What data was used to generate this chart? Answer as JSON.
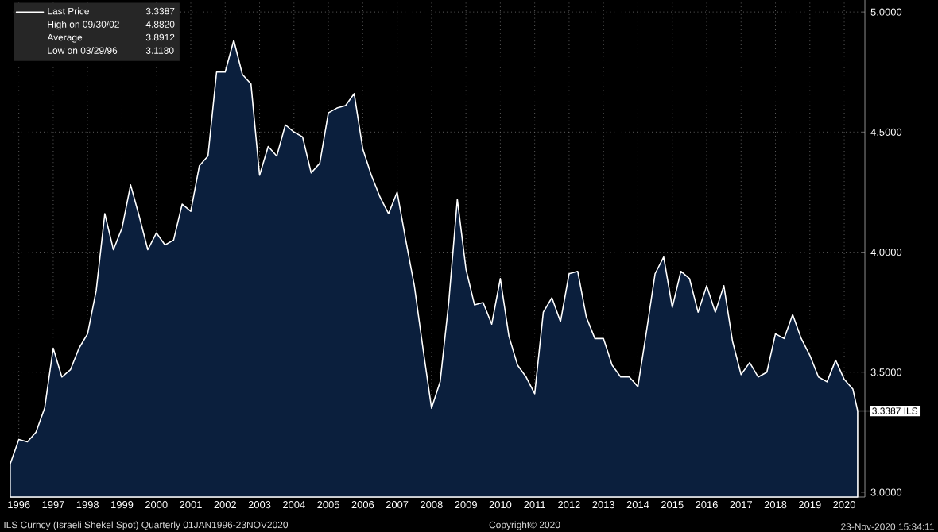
{
  "chart_data": {
    "type": "area",
    "x": [
      1996.25,
      1996.5,
      1996.75,
      1997.0,
      1997.25,
      1997.5,
      1997.75,
      1998.0,
      1998.25,
      1998.5,
      1998.75,
      1999.0,
      1999.25,
      1999.5,
      1999.75,
      2000.0,
      2000.25,
      2000.5,
      2000.75,
      2001.0,
      2001.25,
      2001.5,
      2001.75,
      2002.0,
      2002.25,
      2002.5,
      2002.75,
      2003.0,
      2003.25,
      2003.5,
      2003.75,
      2004.0,
      2004.25,
      2004.5,
      2004.75,
      2005.0,
      2005.25,
      2005.5,
      2005.75,
      2006.0,
      2006.25,
      2006.5,
      2006.75,
      2007.0,
      2007.25,
      2007.5,
      2007.75,
      2008.0,
      2008.25,
      2008.5,
      2008.75,
      2009.0,
      2009.25,
      2009.5,
      2009.75,
      2010.0,
      2010.25,
      2010.5,
      2010.75,
      2011.0,
      2011.25,
      2011.5,
      2011.75,
      2012.0,
      2012.25,
      2012.5,
      2012.75,
      2013.0,
      2013.25,
      2013.5,
      2013.75,
      2014.0,
      2014.25,
      2014.5,
      2014.75,
      2015.0,
      2015.25,
      2015.5,
      2015.75,
      2016.0,
      2016.25,
      2016.5,
      2016.75,
      2017.0,
      2017.25,
      2017.5,
      2017.75,
      2018.0,
      2018.25,
      2018.5,
      2018.75,
      2019.0,
      2019.25,
      2019.5,
      2019.75,
      2020.0,
      2020.25,
      2020.5,
      2020.75,
      2020.89
    ],
    "series": [
      {
        "name": "Last Price",
        "color": "#0b1f3d",
        "values": [
          3.118,
          3.22,
          3.21,
          3.25,
          3.35,
          3.6,
          3.48,
          3.51,
          3.6,
          3.66,
          3.84,
          4.16,
          4.01,
          4.1,
          4.28,
          4.15,
          4.01,
          4.08,
          4.03,
          4.05,
          4.2,
          4.17,
          4.36,
          4.4,
          4.75,
          4.75,
          4.882,
          4.74,
          4.7,
          4.32,
          4.44,
          4.4,
          4.53,
          4.5,
          4.48,
          4.33,
          4.37,
          4.58,
          4.6,
          4.61,
          4.66,
          4.43,
          4.32,
          4.23,
          4.16,
          4.25,
          4.05,
          3.86,
          3.6,
          3.35,
          3.46,
          3.79,
          4.22,
          3.93,
          3.78,
          3.79,
          3.7,
          3.89,
          3.65,
          3.53,
          3.48,
          3.41,
          3.75,
          3.81,
          3.71,
          3.91,
          3.92,
          3.73,
          3.64,
          3.64,
          3.53,
          3.48,
          3.48,
          3.44,
          3.67,
          3.91,
          3.98,
          3.77,
          3.92,
          3.89,
          3.75,
          3.86,
          3.75,
          3.86,
          3.63,
          3.49,
          3.54,
          3.48,
          3.5,
          3.66,
          3.64,
          3.74,
          3.64,
          3.57,
          3.48,
          3.46,
          3.55,
          3.47,
          3.43,
          3.3387
        ]
      }
    ],
    "xlim": [
      1996.23,
      2021.1
    ],
    "xticks": [
      {
        "value": 1996.5,
        "label": "1996"
      },
      {
        "value": 1997.5,
        "label": "1997"
      },
      {
        "value": 1998.5,
        "label": "1998"
      },
      {
        "value": 1999.5,
        "label": "1999"
      },
      {
        "value": 2000.5,
        "label": "2000"
      },
      {
        "value": 2001.5,
        "label": "2001"
      },
      {
        "value": 2002.5,
        "label": "2002"
      },
      {
        "value": 2003.5,
        "label": "2003"
      },
      {
        "value": 2004.5,
        "label": "2004"
      },
      {
        "value": 2005.5,
        "label": "2005"
      },
      {
        "value": 2006.5,
        "label": "2006"
      },
      {
        "value": 2007.5,
        "label": "2007"
      },
      {
        "value": 2008.5,
        "label": "2008"
      },
      {
        "value": 2009.5,
        "label": "2009"
      },
      {
        "value": 2010.5,
        "label": "2010"
      },
      {
        "value": 2011.5,
        "label": "2011"
      },
      {
        "value": 2012.5,
        "label": "2012"
      },
      {
        "value": 2013.5,
        "label": "2013"
      },
      {
        "value": 2014.5,
        "label": "2014"
      },
      {
        "value": 2015.5,
        "label": "2015"
      },
      {
        "value": 2016.5,
        "label": "2016"
      },
      {
        "value": 2017.5,
        "label": "2017"
      },
      {
        "value": 2018.5,
        "label": "2018"
      },
      {
        "value": 2019.5,
        "label": "2019"
      },
      {
        "value": 2020.5,
        "label": "2020"
      }
    ],
    "ylim": [
      2.98,
      5.05
    ],
    "yticks": [
      {
        "value": 3,
        "label": "3.0000"
      },
      {
        "value": 3.5,
        "label": "3.5000"
      },
      {
        "value": 4,
        "label": "4.0000"
      },
      {
        "value": 4.5,
        "label": "4.5000"
      },
      {
        "value": 5,
        "label": "5.0000"
      }
    ],
    "grid": true,
    "legend": "top left",
    "annotations": [
      "3.3387",
      "High on 09/30/02",
      "4.8820",
      "Average",
      "3.8912",
      "Low on 03/29/96",
      "3.1180",
      {
        "text": "3.3387 ILS",
        "x": 2020.89,
        "y": 3.3387
      },
      "ILS Curncy (Israeli Shekel Spot)  Quarterly 01JAN1996-23NOV2020",
      "Copyright© 2020",
      "23-Nov-2020 15:34:11"
    ]
  }
}
